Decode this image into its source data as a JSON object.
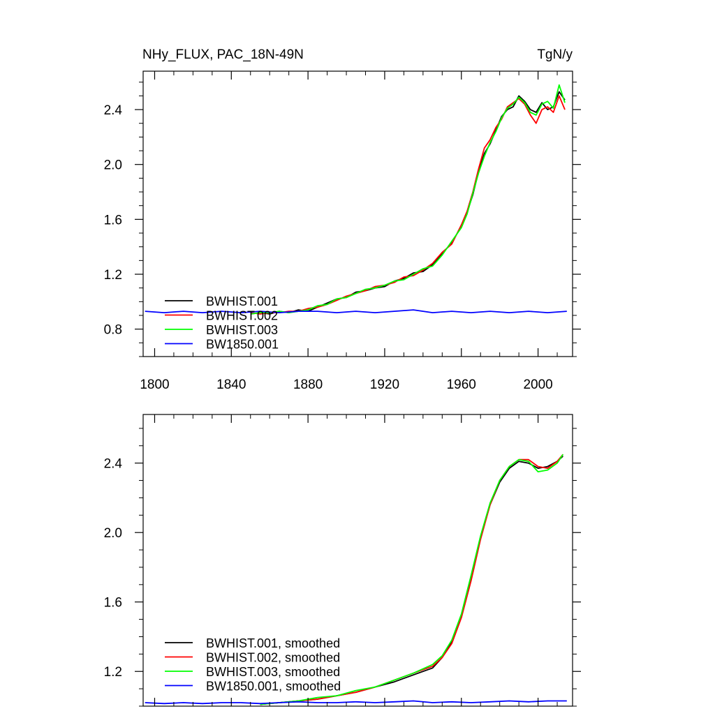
{
  "chart_data": [
    {
      "type": "line",
      "title_left": "NHy_FLUX, PAC_18N-49N",
      "title_right": "TgN/y",
      "xlabel": "",
      "ylabel": "",
      "xlim": [
        1794,
        2018
      ],
      "ylim": [
        0.6,
        2.68
      ],
      "xticks": [
        1800,
        1840,
        1880,
        1920,
        1960,
        2000
      ],
      "xtick_labels": [
        "1800",
        "1840",
        "1880",
        "1920",
        "1960",
        "2000"
      ],
      "yticks": [
        0.8,
        1.2,
        1.6,
        2.0,
        2.4
      ],
      "ytick_labels": [
        "0.8",
        "1.2",
        "1.6",
        "2.0",
        "2.4"
      ],
      "legend_position": "bottom-left",
      "series": [
        {
          "name": "BWHIST.001",
          "color": "#000000",
          "x": [
            1850,
            1855,
            1860,
            1865,
            1870,
            1875,
            1880,
            1885,
            1890,
            1895,
            1900,
            1905,
            1910,
            1915,
            1920,
            1925,
            1930,
            1935,
            1940,
            1945,
            1950,
            1955,
            1960,
            1963,
            1966,
            1969,
            1972,
            1975,
            1978,
            1981,
            1984,
            1987,
            1990,
            1993,
            1996,
            1999,
            2002,
            2005,
            2008,
            2011,
            2014
          ],
          "y": [
            0.91,
            0.92,
            0.91,
            0.93,
            0.92,
            0.94,
            0.93,
            0.96,
            0.99,
            1.02,
            1.03,
            1.07,
            1.08,
            1.1,
            1.11,
            1.15,
            1.17,
            1.21,
            1.22,
            1.27,
            1.35,
            1.43,
            1.55,
            1.65,
            1.78,
            1.95,
            2.08,
            2.15,
            2.25,
            2.35,
            2.4,
            2.42,
            2.5,
            2.46,
            2.4,
            2.38,
            2.45,
            2.4,
            2.42,
            2.53,
            2.47
          ]
        },
        {
          "name": "BWHIST.002",
          "color": "#ff0000",
          "x": [
            1850,
            1855,
            1860,
            1865,
            1870,
            1875,
            1880,
            1885,
            1890,
            1895,
            1900,
            1905,
            1910,
            1915,
            1920,
            1925,
            1930,
            1935,
            1940,
            1945,
            1950,
            1955,
            1960,
            1963,
            1966,
            1969,
            1972,
            1975,
            1978,
            1981,
            1984,
            1987,
            1990,
            1993,
            1996,
            1999,
            2002,
            2005,
            2008,
            2011,
            2014
          ],
          "y": [
            0.92,
            0.91,
            0.92,
            0.92,
            0.93,
            0.93,
            0.95,
            0.96,
            0.98,
            1.01,
            1.04,
            1.06,
            1.08,
            1.11,
            1.12,
            1.14,
            1.18,
            1.19,
            1.23,
            1.28,
            1.36,
            1.42,
            1.56,
            1.66,
            1.8,
            1.97,
            2.12,
            2.18,
            2.27,
            2.33,
            2.42,
            2.45,
            2.48,
            2.44,
            2.36,
            2.3,
            2.4,
            2.42,
            2.38,
            2.5,
            2.4
          ]
        },
        {
          "name": "BWHIST.003",
          "color": "#00ff00",
          "x": [
            1850,
            1855,
            1860,
            1865,
            1870,
            1875,
            1880,
            1885,
            1890,
            1895,
            1900,
            1905,
            1910,
            1915,
            1920,
            1925,
            1930,
            1935,
            1940,
            1945,
            1950,
            1955,
            1960,
            1963,
            1966,
            1969,
            1972,
            1975,
            1978,
            1981,
            1984,
            1987,
            1990,
            1993,
            1996,
            1999,
            2002,
            2005,
            2008,
            2011,
            2014
          ],
          "y": [
            0.91,
            0.92,
            0.92,
            0.93,
            0.92,
            0.93,
            0.94,
            0.97,
            0.98,
            1.02,
            1.03,
            1.06,
            1.09,
            1.1,
            1.12,
            1.15,
            1.16,
            1.2,
            1.24,
            1.26,
            1.34,
            1.44,
            1.54,
            1.64,
            1.79,
            1.94,
            2.06,
            2.16,
            2.24,
            2.34,
            2.41,
            2.44,
            2.49,
            2.45,
            2.38,
            2.36,
            2.44,
            2.46,
            2.41,
            2.58,
            2.45
          ]
        },
        {
          "name": "BW1850.001",
          "color": "#0000ff",
          "x": [
            1795,
            1805,
            1815,
            1825,
            1835,
            1845,
            1855,
            1865,
            1875,
            1885,
            1895,
            1905,
            1915,
            1925,
            1935,
            1945,
            1955,
            1965,
            1975,
            1985,
            1995,
            2005,
            2015
          ],
          "y": [
            0.93,
            0.92,
            0.93,
            0.92,
            0.93,
            0.92,
            0.93,
            0.92,
            0.93,
            0.93,
            0.92,
            0.93,
            0.92,
            0.93,
            0.94,
            0.92,
            0.93,
            0.92,
            0.93,
            0.92,
            0.93,
            0.92,
            0.93
          ]
        }
      ]
    },
    {
      "type": "line",
      "xlim": [
        1794,
        2018
      ],
      "ylim": [
        1.0,
        2.68
      ],
      "xticks": [
        1800,
        1840,
        1880,
        1920,
        1960,
        2000
      ],
      "yticks": [
        1.2,
        1.6,
        2.0,
        2.4
      ],
      "ytick_labels": [
        "1.2",
        "1.6",
        "2.0",
        "2.4"
      ],
      "legend_position": "bottom-left",
      "series": [
        {
          "name": "BWHIST.001, smoothed",
          "color": "#000000",
          "x": [
            1855,
            1865,
            1875,
            1885,
            1895,
            1905,
            1915,
            1925,
            1935,
            1945,
            1950,
            1955,
            1960,
            1965,
            1970,
            1975,
            1980,
            1985,
            1990,
            1995,
            2000,
            2005,
            2010,
            2013
          ],
          "y": [
            1.01,
            1.02,
            1.03,
            1.04,
            1.06,
            1.08,
            1.11,
            1.14,
            1.18,
            1.22,
            1.28,
            1.37,
            1.52,
            1.74,
            1.97,
            2.16,
            2.29,
            2.37,
            2.41,
            2.4,
            2.37,
            2.38,
            2.41,
            2.44
          ]
        },
        {
          "name": "BWHIST.002, smoothed",
          "color": "#ff0000",
          "x": [
            1855,
            1865,
            1875,
            1885,
            1895,
            1905,
            1915,
            1925,
            1935,
            1945,
            1950,
            1955,
            1960,
            1965,
            1970,
            1975,
            1980,
            1985,
            1990,
            1995,
            2000,
            2005,
            2010,
            2013
          ],
          "y": [
            1.01,
            1.02,
            1.03,
            1.04,
            1.06,
            1.08,
            1.11,
            1.15,
            1.19,
            1.23,
            1.28,
            1.36,
            1.51,
            1.72,
            1.96,
            2.16,
            2.3,
            2.38,
            2.42,
            2.42,
            2.38,
            2.37,
            2.41,
            2.45
          ]
        },
        {
          "name": "BWHIST.003, smoothed",
          "color": "#00ff00",
          "x": [
            1855,
            1865,
            1875,
            1885,
            1895,
            1905,
            1915,
            1925,
            1935,
            1945,
            1950,
            1955,
            1960,
            1965,
            1970,
            1975,
            1980,
            1985,
            1990,
            1995,
            2000,
            2005,
            2010,
            2013
          ],
          "y": [
            1.01,
            1.02,
            1.03,
            1.05,
            1.06,
            1.09,
            1.11,
            1.15,
            1.19,
            1.24,
            1.29,
            1.38,
            1.53,
            1.75,
            1.98,
            2.17,
            2.3,
            2.38,
            2.42,
            2.41,
            2.35,
            2.36,
            2.4,
            2.45
          ]
        },
        {
          "name": "BW1850.001, smoothed",
          "color": "#0000ff",
          "x": [
            1795,
            1805,
            1815,
            1825,
            1835,
            1845,
            1855,
            1865,
            1875,
            1885,
            1895,
            1905,
            1915,
            1925,
            1935,
            1945,
            1955,
            1965,
            1975,
            1985,
            1995,
            2005,
            2015
          ],
          "y": [
            1.02,
            1.015,
            1.02,
            1.015,
            1.02,
            1.02,
            1.015,
            1.02,
            1.025,
            1.02,
            1.02,
            1.025,
            1.02,
            1.025,
            1.03,
            1.02,
            1.025,
            1.02,
            1.025,
            1.03,
            1.025,
            1.03,
            1.03
          ]
        }
      ]
    }
  ]
}
